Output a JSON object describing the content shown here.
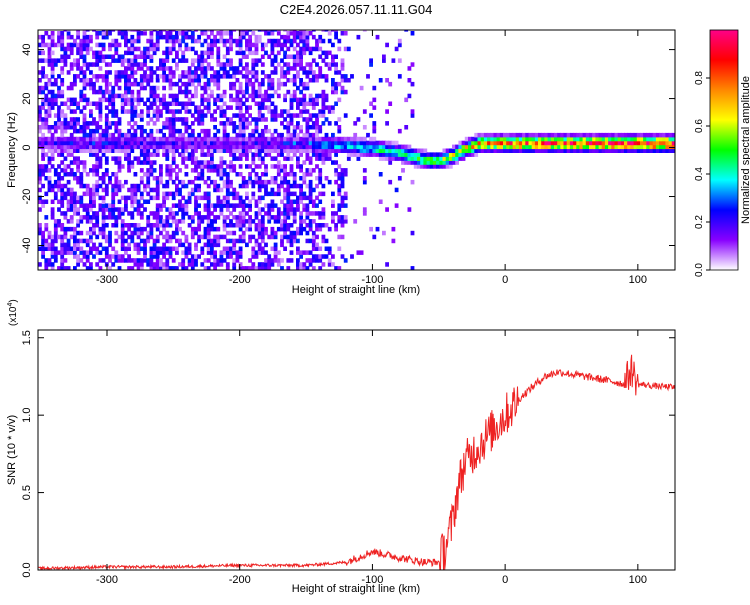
{
  "figure_title": "C2E4.2026.057.11.11.G04",
  "chart_data": [
    {
      "type": "heatmap",
      "title": "C2E4.2026.057.11.11.G04",
      "xlabel": "Height of straight line (km)",
      "ylabel": "Frequency (Hz)",
      "xlim": [
        -352,
        128
      ],
      "ylim": [
        -50,
        48
      ],
      "x_ticks": [
        -300,
        -200,
        -100,
        0,
        100
      ],
      "y_ticks": [
        -40,
        -20,
        0,
        20,
        40
      ],
      "x_tick_labels": [
        "-300",
        "-200",
        "-100",
        "0",
        "100"
      ],
      "y_tick_labels": [
        "-40",
        "-20",
        "0",
        "20",
        "40"
      ],
      "colorbar": {
        "label": "Normalized spectral amplitude",
        "range": [
          0,
          1
        ],
        "ticks": [
          0.0,
          0.2,
          0.4,
          0.6,
          0.8
        ],
        "tick_labels": [
          "0.0",
          "0.2",
          "0.4",
          "0.6",
          "0.8"
        ],
        "colormap": [
          "#ffffff",
          "#8800ff",
          "#0000ff",
          "#00ffff",
          "#00ff00",
          "#ffff00",
          "#ff8800",
          "#ff0000",
          "#ff0088"
        ]
      },
      "signal_track": {
        "description_free": true,
        "height_km": [
          -352,
          -300,
          -250,
          -200,
          -150,
          -120,
          -100,
          -80,
          -60,
          -50,
          -40,
          -30,
          -20,
          -10,
          0,
          20,
          50,
          100,
          128
        ],
        "frequency_hz": [
          1,
          1,
          1,
          1,
          1,
          0,
          -1,
          -3,
          -6,
          -6,
          -4,
          -1,
          1,
          1,
          1,
          1,
          1,
          1,
          1
        ],
        "amplitude": [
          0.2,
          0.25,
          0.2,
          0.2,
          0.3,
          0.35,
          0.4,
          0.45,
          0.5,
          0.55,
          0.6,
          0.65,
          0.7,
          0.75,
          0.8,
          0.85,
          0.85,
          0.9,
          0.9
        ]
      }
    },
    {
      "type": "line",
      "xlabel": "Height of straight line (km)",
      "ylabel": "SNR (10 * v/v)",
      "y_multiplier_label": "(x10",
      "y_multiplier_exp": "4",
      "xlim": [
        -352,
        128
      ],
      "ylim": [
        0,
        1.55
      ],
      "x_ticks": [
        -300,
        -200,
        -100,
        0,
        100
      ],
      "y_ticks": [
        0.0,
        0.5,
        1.0,
        1.5
      ],
      "x_tick_labels": [
        "-300",
        "-200",
        "-100",
        "0",
        "100"
      ],
      "y_tick_labels": [
        "0.0",
        "0.5",
        "1.0",
        "1.5"
      ],
      "color": "#ee2222",
      "series": [
        {
          "name": "SNR",
          "x": [
            -352,
            -300,
            -250,
            -200,
            -150,
            -120,
            -100,
            -80,
            -60,
            -50,
            -45,
            -40,
            -35,
            -30,
            -25,
            -20,
            -15,
            -10,
            -5,
            0,
            10,
            20,
            30,
            40,
            60,
            80,
            90,
            95,
            100,
            110,
            128
          ],
          "y": [
            0.01,
            0.02,
            0.02,
            0.03,
            0.03,
            0.05,
            0.12,
            0.08,
            0.05,
            0.05,
            0.15,
            0.3,
            0.55,
            0.7,
            0.75,
            0.8,
            0.85,
            0.9,
            0.95,
            1.0,
            1.1,
            1.18,
            1.25,
            1.28,
            1.25,
            1.22,
            1.2,
            1.3,
            1.2,
            1.19,
            1.18
          ]
        }
      ]
    }
  ]
}
